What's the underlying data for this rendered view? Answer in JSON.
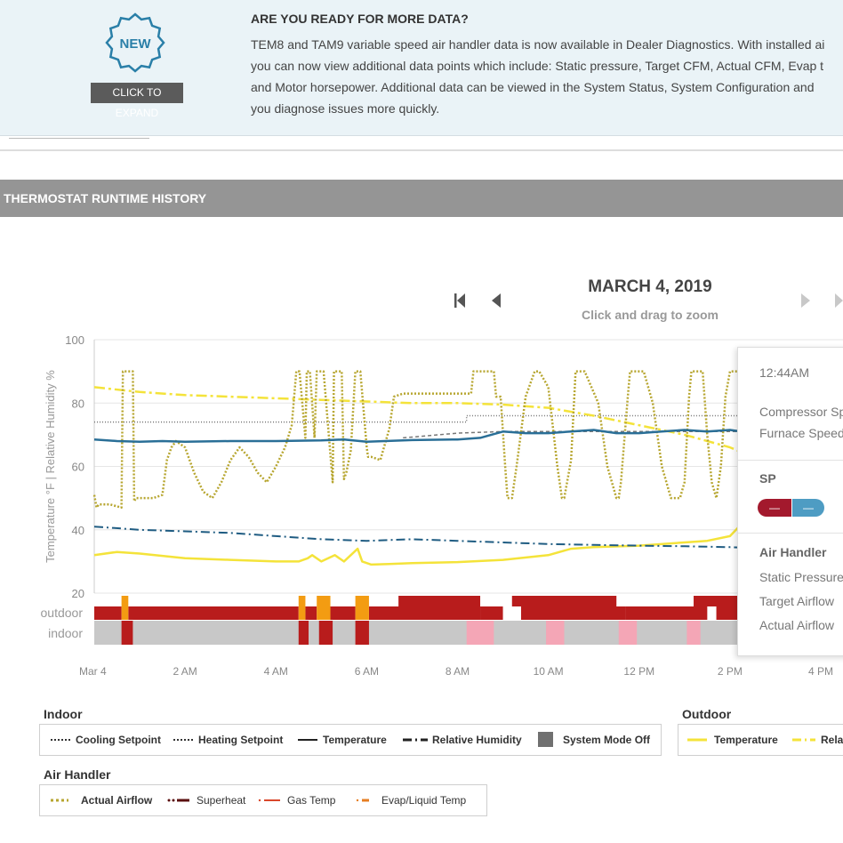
{
  "banner": {
    "badge_label": "NEW",
    "expand_label": "CLICK TO EXPAND",
    "title": "ARE YOU READY FOR MORE DATA?",
    "lines": [
      "TEM8 and TAM9 variable speed air handler data is now available in Dealer Diagnostics. With installed ai",
      "you can now view additional data points which include: Static pressure, Target CFM, Actual CFM, Evap t",
      "and Motor horsepower. Additional data can be viewed in the System Status, System Configuration and",
      "you diagnose issues more quickly."
    ]
  },
  "section": {
    "title": "THERMOSTAT RUNTIME HISTORY"
  },
  "nav": {
    "date": "MARCH 4, 2019",
    "hint": "Click and drag to zoom"
  },
  "colors": {
    "actual_airflow": "#b7a630",
    "indoor_temp": "#2a6f97",
    "indoor_rh": "#1f5c82",
    "outdoor_temp": "#f4e33a",
    "outdoor_rh": "#f4e33a",
    "setpoint": "#777777",
    "runtime_dark": "#b81c1c",
    "runtime_orange": "#f39c12",
    "mode_off": "#c8c8c8",
    "pink": "#f4a6b6",
    "sp_red": "#a3192d",
    "sp_blue": "#4e9cc3"
  },
  "tooltip": {
    "time": "12:44AM",
    "lines": [
      "Compressor Sp",
      "Furnace Speed"
    ],
    "sp_header": "SP",
    "sp_values": [
      "—",
      "—"
    ],
    "air_handler_header": "Air Handler",
    "air_handler_lines": [
      "Static Pressure",
      "Target Airflow",
      "Actual Airflow"
    ]
  },
  "legends": {
    "indoor": {
      "title": "Indoor",
      "items": [
        "Cooling Setpoint",
        "Heating Setpoint",
        "Temperature",
        "Relative Humidity",
        "System Mode Off"
      ]
    },
    "outdoor": {
      "title": "Outdoor",
      "items": [
        "Temperature",
        "Rela"
      ]
    },
    "air_handler": {
      "title": "Air Handler",
      "items": [
        "Actual Airflow",
        "Superheat",
        "Gas Temp",
        "Evap/Liquid Temp"
      ]
    }
  },
  "chart_data": {
    "type": "line",
    "title": "",
    "ylabel": "Temperature °F | Relative Humidity %",
    "ylim": [
      20,
      100
    ],
    "yticks": [
      100,
      80,
      60,
      40,
      20
    ],
    "xlim": [
      0,
      16
    ],
    "xticks": [
      {
        "x": 0,
        "label": "Mar 4"
      },
      {
        "x": 2,
        "label": "2 AM"
      },
      {
        "x": 4,
        "label": "4 AM"
      },
      {
        "x": 6,
        "label": "6 AM"
      },
      {
        "x": 8,
        "label": "8 AM"
      },
      {
        "x": 10,
        "label": "10 AM"
      },
      {
        "x": 12,
        "label": "12 PM"
      },
      {
        "x": 14,
        "label": "2 PM"
      },
      {
        "x": 16,
        "label": "4 PM"
      }
    ],
    "row_labels": [
      "outdoor",
      "indoor"
    ],
    "series": [
      {
        "name": "Actual Airflow",
        "style": "dotted",
        "x": [
          0,
          0.05,
          0.1,
          0.35,
          0.6,
          0.63,
          0.66,
          0.85,
          0.88,
          0.92,
          1.05,
          1.3,
          1.5,
          1.6,
          1.7,
          1.8,
          2.0,
          2.2,
          2.4,
          2.6,
          2.8,
          3.0,
          3.2,
          3.4,
          3.6,
          3.8,
          4.0,
          4.2,
          4.35,
          4.45,
          4.48,
          4.52,
          4.65,
          4.68,
          4.72,
          4.75,
          4.85,
          4.9,
          5.0,
          5.05,
          5.25,
          5.28,
          5.32,
          5.45,
          5.5,
          5.55,
          5.65,
          5.75,
          5.82,
          5.86,
          6.0,
          6.03,
          6.1,
          6.3,
          6.5,
          6.6,
          6.8,
          6.9,
          7.0,
          7.3,
          7.6,
          8.0,
          8.3,
          8.35,
          8.4,
          8.6,
          8.75,
          8.8,
          8.85,
          8.95,
          9.05,
          9.1,
          9.2,
          9.3,
          9.5,
          9.7,
          9.75,
          9.8,
          10.0,
          10.2,
          10.3,
          10.35,
          10.5,
          10.6,
          10.7,
          10.8,
          11.1,
          11.3,
          11.5,
          11.55,
          11.6,
          11.75,
          11.8,
          11.9,
          12.1,
          12.3,
          12.5,
          12.7,
          12.9,
          13.0,
          13.1,
          13.15,
          13.3,
          13.4,
          13.5,
          13.6,
          13.7,
          13.8,
          13.9,
          14.0,
          14.05,
          14.2,
          14.4,
          14.45,
          14.5
        ],
        "y": [
          51,
          47,
          48,
          48,
          47,
          90,
          90,
          90,
          49,
          50,
          50,
          50,
          51,
          62,
          66,
          68,
          66,
          58,
          52,
          50,
          55,
          62,
          66,
          63,
          58,
          55,
          60,
          66,
          73,
          90,
          90,
          90,
          69,
          90,
          90,
          90,
          69,
          90,
          90,
          90,
          55,
          90,
          90,
          90,
          56,
          58,
          65,
          90,
          90,
          90,
          66,
          63,
          63,
          62,
          72,
          82,
          83,
          83,
          83,
          83,
          83,
          83,
          83,
          90,
          90,
          90,
          90,
          90,
          82,
          82,
          60,
          50,
          50,
          60,
          82,
          90,
          90,
          90,
          85,
          60,
          50,
          50,
          62,
          90,
          90,
          90,
          80,
          60,
          50,
          50,
          55,
          82,
          90,
          90,
          90,
          80,
          60,
          50,
          50,
          55,
          82,
          90,
          90,
          90,
          70,
          55,
          50,
          60,
          82,
          90,
          90,
          90,
          70,
          50,
          90
        ]
      },
      {
        "name": "Temperature",
        "group": "Indoor",
        "style": "solid",
        "x": [
          0,
          0.5,
          1,
          1.5,
          2,
          3,
          4,
          5,
          5.5,
          6,
          7,
          8,
          8.5,
          9,
          9.5,
          10,
          10.5,
          11,
          11.5,
          12,
          12.5,
          13,
          13.5,
          14,
          14.5
        ],
        "y": [
          68.5,
          68,
          67.8,
          68,
          67.8,
          68,
          68,
          68.2,
          68.5,
          67.8,
          68.3,
          68.5,
          69,
          71,
          70.5,
          70.5,
          71,
          71.5,
          70.5,
          70.5,
          71,
          71.5,
          71,
          71.5,
          70.5
        ]
      },
      {
        "name": "Relative Humidity",
        "group": "Indoor",
        "style": "dash-dot",
        "x": [
          0,
          1,
          2,
          3,
          4,
          5,
          6,
          7,
          8,
          9,
          10,
          11,
          12,
          13,
          14,
          14.5
        ],
        "y": [
          41,
          40,
          39.5,
          39,
          38,
          37,
          36.5,
          37,
          36.5,
          36,
          35.5,
          35.2,
          35,
          34.8,
          34.5,
          34.3
        ]
      },
      {
        "name": "Cooling Setpoint",
        "group": "Indoor",
        "style": "dotted",
        "x": [
          0,
          0.6,
          0.6,
          1,
          2,
          4,
          7,
          8,
          8.2,
          8.2,
          12,
          14,
          14.5
        ],
        "y": [
          74,
          74,
          74,
          74,
          74,
          74,
          74,
          74,
          74,
          76,
          76,
          76,
          76
        ]
      },
      {
        "name": "Heating Setpoint",
        "group": "Indoor",
        "style": "dotted",
        "x": [
          6.8,
          8,
          9,
          10,
          11,
          12,
          13,
          14,
          14.5
        ],
        "y": [
          69,
          70.5,
          71,
          71,
          71,
          71,
          71,
          71,
          71
        ]
      },
      {
        "name": "Temperature",
        "group": "Outdoor",
        "style": "solid",
        "x": [
          0,
          0.5,
          1,
          2,
          3,
          4,
          4.5,
          4.7,
          4.8,
          5,
          5.3,
          5.5,
          5.8,
          5.9,
          6.1,
          6.5,
          7,
          8,
          9,
          10,
          10.5,
          11,
          12,
          13,
          13.5,
          14,
          14.2,
          14.3,
          14.5
        ],
        "y": [
          32,
          33,
          32.5,
          31,
          30.5,
          30,
          30,
          31,
          32,
          30,
          32,
          30,
          34,
          30,
          29,
          29.2,
          29.5,
          29.8,
          30.5,
          32,
          34,
          34.5,
          35,
          36,
          36.5,
          38,
          41,
          38,
          37
        ]
      },
      {
        "name": "Relative Humidity",
        "group": "Outdoor",
        "style": "dash-dot",
        "x": [
          0,
          1,
          2,
          3,
          4,
          5,
          6,
          7,
          8,
          9,
          10,
          11,
          12,
          13,
          14,
          14.5
        ],
        "y": [
          85,
          83.5,
          82.5,
          82,
          81.5,
          81,
          80.5,
          80,
          80,
          79.5,
          78.5,
          76,
          73,
          70,
          66,
          63
        ]
      }
    ],
    "runtime_outdoor": {
      "dark": [
        [
          0,
          0.6
        ],
        [
          0.75,
          4.5
        ],
        [
          4.65,
          4.9
        ],
        [
          5.2,
          5.75
        ],
        [
          6.05,
          8.5
        ],
        [
          8.5,
          9
        ],
        [
          9.4,
          11.7
        ],
        [
          11.7,
          13.5
        ],
        [
          13.7,
          14.5
        ]
      ],
      "orange": [
        [
          0.6,
          0.75
        ],
        [
          4.5,
          4.65
        ],
        [
          4.9,
          5.2
        ],
        [
          5.75,
          6.05
        ],
        [
          14.2,
          14.5
        ]
      ]
    },
    "runtime_indoor": {
      "dark": [
        [
          0.6,
          0.85
        ],
        [
          4.5,
          4.72
        ],
        [
          4.95,
          5.25
        ],
        [
          5.75,
          6.05
        ],
        [
          14.2,
          14.5
        ]
      ],
      "pink": [
        [
          8.2,
          8.8
        ],
        [
          9.95,
          10.35
        ],
        [
          11.55,
          11.95
        ],
        [
          13.05,
          13.35
        ]
      ]
    }
  }
}
